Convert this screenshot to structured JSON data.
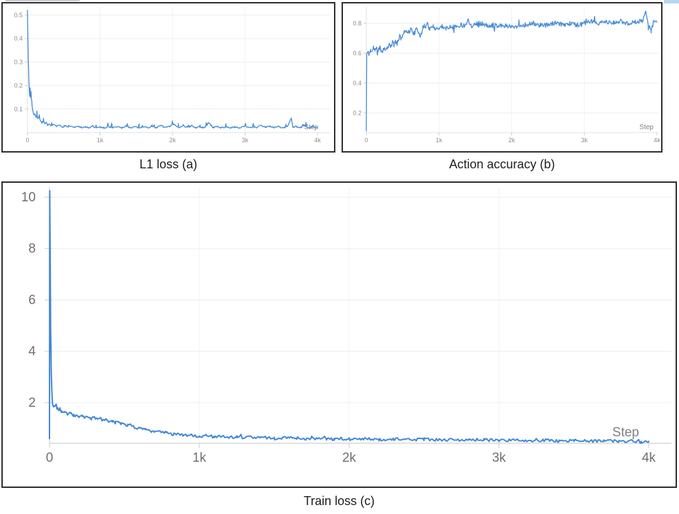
{
  "page": {
    "background": "#ffffff",
    "panel_border_color": "#2c2c2c"
  },
  "artifacts": {
    "top_left_strip_color": "#c8cdd6",
    "top_right_strip_color": "#b5d7f2"
  },
  "style_colors": {
    "grid": "#ededed",
    "vgrid": "#f1f1f1",
    "axis": "#e2e2e2",
    "tick_mark": "#cccccc",
    "small_tick_text": "#8c8c8c",
    "big_tick_text": "#6f6f6f",
    "step_label": "#7f7f7f",
    "caption_text": "#1d1d1f"
  },
  "chart_data": [
    {
      "id": "l1_loss",
      "type": "line",
      "caption": "L1 loss (a)",
      "xlabel": "Step",
      "legend": "none",
      "grid": "on",
      "line_color": "#4589d6",
      "xlim": [
        0,
        4000
      ],
      "ylim": [
        0,
        0.535
      ],
      "x_ticks": [
        {
          "label": "0",
          "value": 0
        },
        {
          "label": "1k",
          "value": 1000
        },
        {
          "label": "2k",
          "value": 2000
        },
        {
          "label": "3k",
          "value": 3000
        },
        {
          "label": "4k",
          "value": 4000
        }
      ],
      "y_ticks": [
        {
          "label": "0.1",
          "value": 0.1
        },
        {
          "label": "0.2",
          "value": 0.2
        },
        {
          "label": "0.3",
          "value": 0.3
        },
        {
          "label": "0.4",
          "value": 0.4
        },
        {
          "label": "0.5",
          "value": 0.5
        }
      ],
      "sample_every": 9,
      "noise": {
        "abs": 0.003,
        "after": 60,
        "spike_prob": 0.1,
        "spike_amp": 0.02,
        "bipolar": false,
        "seed": 7
      },
      "trend": [
        [
          0,
          0.52
        ],
        [
          6,
          0.4
        ],
        [
          12,
          0.3
        ],
        [
          18,
          0.235
        ],
        [
          24,
          0.19
        ],
        [
          30,
          0.155
        ],
        [
          36,
          0.19
        ],
        [
          42,
          0.15
        ],
        [
          48,
          0.175
        ],
        [
          54,
          0.14
        ],
        [
          60,
          0.12
        ],
        [
          70,
          0.1
        ],
        [
          80,
          0.085
        ],
        [
          90,
          0.075
        ],
        [
          100,
          0.08
        ],
        [
          115,
          0.065
        ],
        [
          130,
          0.072
        ],
        [
          145,
          0.058
        ],
        [
          160,
          0.065
        ],
        [
          180,
          0.05
        ],
        [
          200,
          0.042
        ],
        [
          220,
          0.048
        ],
        [
          240,
          0.036
        ],
        [
          260,
          0.042
        ],
        [
          280,
          0.032
        ],
        [
          300,
          0.035
        ],
        [
          330,
          0.028
        ],
        [
          360,
          0.033
        ],
        [
          400,
          0.026
        ],
        [
          440,
          0.031
        ],
        [
          480,
          0.024
        ],
        [
          520,
          0.03
        ],
        [
          560,
          0.024
        ],
        [
          600,
          0.028
        ],
        [
          650,
          0.022
        ],
        [
          700,
          0.027
        ],
        [
          750,
          0.021
        ],
        [
          800,
          0.024
        ],
        [
          850,
          0.02
        ],
        [
          900,
          0.026
        ],
        [
          950,
          0.021
        ],
        [
          1000,
          0.024
        ],
        [
          1060,
          0.02
        ],
        [
          1120,
          0.026
        ],
        [
          1180,
          0.021
        ],
        [
          1240,
          0.025
        ],
        [
          1300,
          0.02
        ],
        [
          1360,
          0.028
        ],
        [
          1420,
          0.021
        ],
        [
          1480,
          0.025
        ],
        [
          1540,
          0.02
        ],
        [
          1600,
          0.026
        ],
        [
          1660,
          0.021
        ],
        [
          1720,
          0.027
        ],
        [
          1780,
          0.02
        ],
        [
          1840,
          0.032
        ],
        [
          1900,
          0.021
        ],
        [
          1960,
          0.026
        ],
        [
          2020,
          0.035
        ],
        [
          2080,
          0.02
        ],
        [
          2140,
          0.03
        ],
        [
          2200,
          0.022
        ],
        [
          2260,
          0.028
        ],
        [
          2320,
          0.02
        ],
        [
          2380,
          0.024
        ],
        [
          2440,
          0.02
        ],
        [
          2500,
          0.042
        ],
        [
          2560,
          0.022
        ],
        [
          2620,
          0.026
        ],
        [
          2680,
          0.02
        ],
        [
          2740,
          0.025
        ],
        [
          2800,
          0.02
        ],
        [
          2860,
          0.024
        ],
        [
          2920,
          0.02
        ],
        [
          2980,
          0.028
        ],
        [
          3040,
          0.021
        ],
        [
          3100,
          0.024
        ],
        [
          3160,
          0.02
        ],
        [
          3220,
          0.032
        ],
        [
          3280,
          0.022
        ],
        [
          3340,
          0.028
        ],
        [
          3400,
          0.022
        ],
        [
          3460,
          0.026
        ],
        [
          3520,
          0.02
        ],
        [
          3580,
          0.024
        ],
        [
          3640,
          0.062
        ],
        [
          3660,
          0.022
        ],
        [
          3700,
          0.026
        ],
        [
          3760,
          0.02
        ],
        [
          3820,
          0.03
        ],
        [
          3880,
          0.021
        ],
        [
          3940,
          0.025
        ],
        [
          4000,
          0.022
        ]
      ]
    },
    {
      "id": "accuracy",
      "type": "line",
      "caption": "Action accuracy (b)",
      "xlabel": "Step",
      "legend": "none",
      "grid": "on",
      "line_color": "#4589d6",
      "xlim": [
        0,
        4000
      ],
      "ylim": [
        0.068,
        0.91
      ],
      "x_ticks": [
        {
          "label": "0",
          "value": 0
        },
        {
          "label": "1k",
          "value": 1000
        },
        {
          "label": "2k",
          "value": 2000
        },
        {
          "label": "3k",
          "value": 3000
        },
        {
          "label": "4k",
          "value": 4000
        }
      ],
      "y_ticks": [
        {
          "label": "0.2",
          "value": 0.2
        },
        {
          "label": "0.4",
          "value": 0.4
        },
        {
          "label": "0.6",
          "value": 0.6
        },
        {
          "label": "0.8",
          "value": 0.8
        }
      ],
      "sample_every": 9,
      "noise": {
        "abs": 0.016,
        "after": 10,
        "spike_prob": 0.05,
        "spike_amp": 0.035,
        "bipolar": true,
        "seed": 11
      },
      "trend": [
        [
          0,
          0.08
        ],
        [
          6,
          0.595
        ],
        [
          20,
          0.605
        ],
        [
          40,
          0.595
        ],
        [
          60,
          0.62
        ],
        [
          80,
          0.61
        ],
        [
          100,
          0.64
        ],
        [
          120,
          0.62
        ],
        [
          140,
          0.63
        ],
        [
          160,
          0.615
        ],
        [
          180,
          0.64
        ],
        [
          200,
          0.625
        ],
        [
          220,
          0.61
        ],
        [
          240,
          0.635
        ],
        [
          260,
          0.62
        ],
        [
          280,
          0.645
        ],
        [
          300,
          0.635
        ],
        [
          320,
          0.66
        ],
        [
          340,
          0.645
        ],
        [
          360,
          0.67
        ],
        [
          380,
          0.655
        ],
        [
          400,
          0.68
        ],
        [
          420,
          0.67
        ],
        [
          440,
          0.695
        ],
        [
          460,
          0.71
        ],
        [
          480,
          0.7
        ],
        [
          500,
          0.725
        ],
        [
          520,
          0.735
        ],
        [
          540,
          0.745
        ],
        [
          560,
          0.755
        ],
        [
          580,
          0.74
        ],
        [
          600,
          0.75
        ],
        [
          620,
          0.76
        ],
        [
          640,
          0.745
        ],
        [
          660,
          0.73
        ],
        [
          680,
          0.75
        ],
        [
          700,
          0.76
        ],
        [
          720,
          0.745
        ],
        [
          740,
          0.72
        ],
        [
          760,
          0.74
        ],
        [
          780,
          0.77
        ],
        [
          800,
          0.78
        ],
        [
          820,
          0.79
        ],
        [
          840,
          0.8
        ],
        [
          860,
          0.775
        ],
        [
          880,
          0.76
        ],
        [
          900,
          0.77
        ],
        [
          920,
          0.78
        ],
        [
          940,
          0.765
        ],
        [
          960,
          0.775
        ],
        [
          980,
          0.76
        ],
        [
          1000,
          0.77
        ],
        [
          1050,
          0.78
        ],
        [
          1100,
          0.77
        ],
        [
          1150,
          0.78
        ],
        [
          1200,
          0.775
        ],
        [
          1250,
          0.78
        ],
        [
          1300,
          0.79
        ],
        [
          1350,
          0.785
        ],
        [
          1400,
          0.825
        ],
        [
          1450,
          0.78
        ],
        [
          1500,
          0.8
        ],
        [
          1550,
          0.79
        ],
        [
          1600,
          0.8
        ],
        [
          1650,
          0.785
        ],
        [
          1700,
          0.775
        ],
        [
          1750,
          0.79
        ],
        [
          1800,
          0.785
        ],
        [
          1850,
          0.79
        ],
        [
          1900,
          0.78
        ],
        [
          1950,
          0.785
        ],
        [
          2000,
          0.775
        ],
        [
          2100,
          0.785
        ],
        [
          2200,
          0.79
        ],
        [
          2300,
          0.8
        ],
        [
          2400,
          0.785
        ],
        [
          2500,
          0.79
        ],
        [
          2600,
          0.8
        ],
        [
          2700,
          0.79
        ],
        [
          2800,
          0.8
        ],
        [
          2900,
          0.79
        ],
        [
          3000,
          0.8
        ],
        [
          3100,
          0.81
        ],
        [
          3200,
          0.8
        ],
        [
          3300,
          0.81
        ],
        [
          3400,
          0.8
        ],
        [
          3500,
          0.815
        ],
        [
          3600,
          0.8
        ],
        [
          3700,
          0.81
        ],
        [
          3800,
          0.815
        ],
        [
          3850,
          0.875
        ],
        [
          3880,
          0.8
        ],
        [
          3920,
          0.745
        ],
        [
          3960,
          0.82
        ],
        [
          4000,
          0.815
        ]
      ]
    },
    {
      "id": "train",
      "type": "line",
      "caption": "Train loss (c)",
      "xlabel": "Step",
      "legend": "none",
      "grid": "on",
      "line_color": "#4287d5",
      "xlim": [
        0,
        4000
      ],
      "ylim": [
        0.42,
        10.4
      ],
      "x_ticks": [
        {
          "label": "0",
          "value": 0
        },
        {
          "label": "1k",
          "value": 1000
        },
        {
          "label": "2k",
          "value": 2000
        },
        {
          "label": "3k",
          "value": 3000
        },
        {
          "label": "4k",
          "value": 4000
        }
      ],
      "y_ticks": [
        {
          "label": "2",
          "value": 2
        },
        {
          "label": "4",
          "value": 4
        },
        {
          "label": "6",
          "value": 6
        },
        {
          "label": "8",
          "value": 8
        },
        {
          "label": "10",
          "value": 10
        }
      ],
      "sample_every": 9,
      "noise": {
        "abs": 0.055,
        "after": 25,
        "spike_prob": 0.05,
        "spike_amp": 0.09,
        "bipolar": false,
        "seed": 23
      },
      "trend": [
        [
          0,
          0.6
        ],
        [
          2,
          10.25
        ],
        [
          5,
          7.5
        ],
        [
          8,
          4.8
        ],
        [
          12,
          3.2
        ],
        [
          16,
          2.4
        ],
        [
          20,
          1.95
        ],
        [
          30,
          1.85
        ],
        [
          40,
          1.9
        ],
        [
          50,
          1.78
        ],
        [
          60,
          1.72
        ],
        [
          70,
          1.78
        ],
        [
          80,
          1.65
        ],
        [
          90,
          1.6
        ],
        [
          100,
          1.62
        ],
        [
          120,
          1.55
        ],
        [
          140,
          1.58
        ],
        [
          160,
          1.5
        ],
        [
          180,
          1.52
        ],
        [
          200,
          1.45
        ],
        [
          220,
          1.5
        ],
        [
          240,
          1.42
        ],
        [
          260,
          1.45
        ],
        [
          280,
          1.38
        ],
        [
          300,
          1.42
        ],
        [
          320,
          1.35
        ],
        [
          340,
          1.38
        ],
        [
          360,
          1.3
        ],
        [
          380,
          1.33
        ],
        [
          400,
          1.26
        ],
        [
          420,
          1.3
        ],
        [
          440,
          1.22
        ],
        [
          460,
          1.26
        ],
        [
          480,
          1.18
        ],
        [
          500,
          1.15
        ],
        [
          520,
          1.12
        ],
        [
          540,
          1.15
        ],
        [
          560,
          1.05
        ],
        [
          580,
          1.02
        ],
        [
          600,
          1.05
        ],
        [
          620,
          0.98
        ],
        [
          640,
          0.95
        ],
        [
          660,
          0.98
        ],
        [
          680,
          0.9
        ],
        [
          700,
          0.88
        ],
        [
          720,
          0.92
        ],
        [
          740,
          0.85
        ],
        [
          760,
          0.83
        ],
        [
          780,
          0.88
        ],
        [
          800,
          0.8
        ],
        [
          830,
          0.76
        ],
        [
          860,
          0.8
        ],
        [
          890,
          0.74
        ],
        [
          920,
          0.72
        ],
        [
          950,
          0.76
        ],
        [
          980,
          0.7
        ],
        [
          1000,
          0.68
        ],
        [
          1050,
          0.72
        ],
        [
          1100,
          0.66
        ],
        [
          1150,
          0.7
        ],
        [
          1200,
          0.64
        ],
        [
          1250,
          0.68
        ],
        [
          1300,
          0.62
        ],
        [
          1350,
          0.66
        ],
        [
          1400,
          0.62
        ],
        [
          1450,
          0.64
        ],
        [
          1500,
          0.6
        ],
        [
          1550,
          0.64
        ],
        [
          1600,
          0.6
        ],
        [
          1650,
          0.62
        ],
        [
          1700,
          0.58
        ],
        [
          1750,
          0.62
        ],
        [
          1800,
          0.58
        ],
        [
          1850,
          0.6
        ],
        [
          1900,
          0.56
        ],
        [
          1950,
          0.6
        ],
        [
          2000,
          0.58
        ],
        [
          2100,
          0.6
        ],
        [
          2200,
          0.56
        ],
        [
          2300,
          0.58
        ],
        [
          2400,
          0.55
        ],
        [
          2500,
          0.58
        ],
        [
          2600,
          0.54
        ],
        [
          2700,
          0.56
        ],
        [
          2800,
          0.54
        ],
        [
          2900,
          0.56
        ],
        [
          3000,
          0.52
        ],
        [
          3100,
          0.55
        ],
        [
          3200,
          0.52
        ],
        [
          3300,
          0.54
        ],
        [
          3400,
          0.51
        ],
        [
          3500,
          0.53
        ],
        [
          3600,
          0.5
        ],
        [
          3700,
          0.52
        ],
        [
          3800,
          0.49
        ],
        [
          3900,
          0.5
        ],
        [
          3950,
          0.46
        ],
        [
          4000,
          0.43
        ]
      ]
    }
  ]
}
